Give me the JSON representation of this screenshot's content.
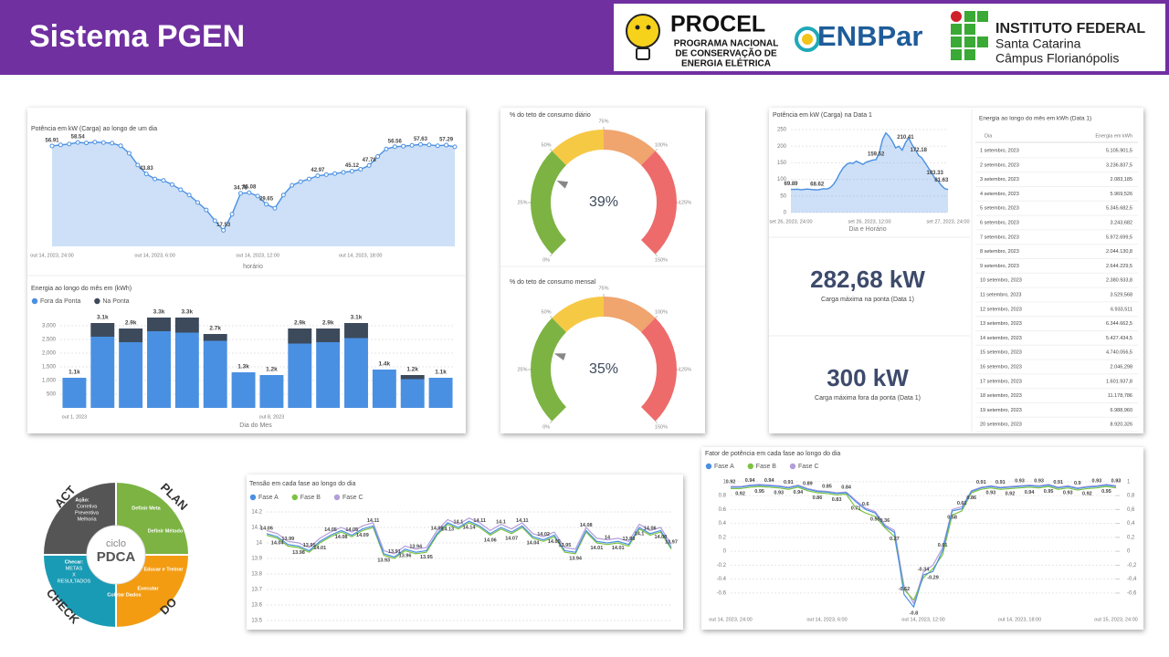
{
  "header": {
    "title": "Sistema PGEN",
    "procel": {
      "name": "PROCEL",
      "lines": [
        "PROGRAMA NACIONAL",
        "DE CONSERVAÇÃO DE",
        "ENERGIA ELÉTRICA"
      ]
    },
    "enbpar": "ENBPar",
    "ifsc": {
      "name": "INSTITUTO FEDERAL",
      "lines": [
        "Santa Catarina",
        "Câmpus Florianópolis"
      ]
    }
  },
  "chart_data": [
    {
      "type": "area",
      "title": "Potência em kW (Carga) ao longo de um dia",
      "x_label": "horário",
      "color": "#4a90e2",
      "markers": true,
      "ylim": [
        10,
        62
      ],
      "categories": [
        "out 14, 2023, 24:00",
        null,
        null,
        null,
        null,
        null,
        null,
        null,
        null,
        null,
        null,
        null,
        "out 14, 2023, 6:00",
        null,
        null,
        null,
        null,
        null,
        null,
        null,
        null,
        null,
        null,
        null,
        "out 14, 2023, 12:00",
        null,
        null,
        null,
        null,
        null,
        null,
        null,
        null,
        null,
        null,
        null,
        "out 14, 2023, 18:00",
        null,
        null,
        null,
        null,
        null,
        null,
        null,
        null,
        null,
        null,
        null
      ],
      "values": [
        56.91,
        57.4,
        57.8,
        58.54,
        58.3,
        58.7,
        58.5,
        58.2,
        57.0,
        53.5,
        48.0,
        43.83,
        41.5,
        40.8,
        38.9,
        36.5,
        34.0,
        30.5,
        27.0,
        22.0,
        17.53,
        25.0,
        34.78,
        35.08,
        33.5,
        29.65,
        27.8,
        34.0,
        38.5,
        40.2,
        41.5,
        42.97,
        43.5,
        44.0,
        44.6,
        45.12,
        46.0,
        47.78,
        52.0,
        55.5,
        56.56,
        56.8,
        57.2,
        57.63,
        57.4,
        57.0,
        57.29,
        56.5
      ],
      "value_labels": [
        "56.91",
        null,
        null,
        "58.54",
        null,
        null,
        null,
        null,
        null,
        null,
        null,
        "43.83",
        null,
        null,
        null,
        null,
        null,
        null,
        null,
        null,
        "17.53",
        null,
        "34.78",
        "35.08",
        null,
        "29.65",
        null,
        null,
        null,
        null,
        null,
        "42.97",
        null,
        null,
        null,
        "45.12",
        null,
        "47.78",
        null,
        null,
        "56.56",
        null,
        null,
        "57.63",
        null,
        null,
        "57.29",
        null
      ]
    },
    {
      "type": "bar",
      "stacked": true,
      "title": "Energia ao longo do mês em (kWh)",
      "x_label": "Dia do Mes",
      "grid": true,
      "ylim": [
        0,
        3500
      ],
      "yticks": [
        500,
        {
          "value": 1000,
          "label": "1,000"
        },
        {
          "value": 1500,
          "label": "1,500"
        },
        {
          "value": 2000,
          "label": "2,000"
        },
        {
          "value": 2500,
          "label": "2,500"
        },
        {
          "value": 3000,
          "label": "3,000"
        }
      ],
      "categories": [
        "out 1, 2023",
        null,
        null,
        null,
        null,
        null,
        null,
        "out 8, 2023",
        null,
        null,
        null,
        null,
        null,
        null
      ],
      "series": [
        {
          "name": "Fora da Ponta",
          "color": "#4a90e2",
          "values": [
            1100,
            2600,
            2400,
            2800,
            2750,
            2450,
            1300,
            1200,
            2350,
            2400,
            2550,
            1400,
            1050,
            1100
          ]
        },
        {
          "name": "Na Ponta",
          "color": "#3d4a5c",
          "values": [
            0,
            500,
            500,
            500,
            550,
            250,
            0,
            0,
            550,
            500,
            550,
            0,
            150,
            0
          ]
        }
      ],
      "total_labels": [
        "1.1k",
        "3.1k",
        "2.9k",
        "3.3k",
        "3.3k",
        "2.7k",
        "1.3k",
        "1.2k",
        "2.9k",
        "2.9k",
        "3.1k",
        "1.4k",
        "1.2k",
        "1.1k"
      ]
    },
    {
      "type": "gauge",
      "title": "% do teto de consumo diário",
      "value": 39,
      "value_label": "39%",
      "ylim": [
        0,
        150
      ],
      "yticks": [
        {
          "value": 0,
          "label": "0%"
        },
        {
          "value": 25,
          "label": "25%"
        },
        {
          "value": 50,
          "label": "50%"
        },
        {
          "value": 75,
          "label": "75%"
        },
        {
          "value": 100,
          "label": "100%"
        },
        {
          "value": 125,
          "label": "125%"
        },
        {
          "value": 150,
          "label": "150%"
        }
      ],
      "bands": [
        {
          "from": 0,
          "to": 50,
          "color": "#7cb342"
        },
        {
          "from": 50,
          "to": 75,
          "color": "#f6c945"
        },
        {
          "from": 75,
          "to": 100,
          "color": "#f0a46e"
        },
        {
          "from": 100,
          "to": 150,
          "color": "#ee6b6b"
        }
      ]
    },
    {
      "type": "gauge",
      "title": "% do teto de consumo mensal",
      "value": 35,
      "value_label": "35%",
      "ylim": [
        0,
        150
      ],
      "yticks": [
        {
          "value": 0,
          "label": "0%"
        },
        {
          "value": 25,
          "label": "25%"
        },
        {
          "value": 50,
          "label": "50%"
        },
        {
          "value": 75,
          "label": "75%"
        },
        {
          "value": 100,
          "label": "100%"
        },
        {
          "value": 125,
          "label": "125%"
        },
        {
          "value": 150,
          "label": "150%"
        }
      ],
      "bands": [
        {
          "from": 0,
          "to": 50,
          "color": "#7cb342"
        },
        {
          "from": 50,
          "to": 75,
          "color": "#f6c945"
        },
        {
          "from": 75,
          "to": 100,
          "color": "#f0a46e"
        },
        {
          "from": 100,
          "to": 150,
          "color": "#ee6b6b"
        }
      ]
    },
    {
      "type": "area",
      "title": "Potência em kW (Carga) na Data 1",
      "x_label": "Dia e Horário",
      "color": "#4a90e2",
      "grid": true,
      "ylim": [
        0,
        250
      ],
      "yticks": [
        0,
        50,
        100,
        150,
        200,
        250
      ],
      "categories": [
        "set 26, 2023, 24:00",
        null,
        null,
        null,
        null,
        null,
        null,
        null,
        null,
        null,
        null,
        null,
        null,
        null,
        null,
        null,
        null,
        null,
        null,
        null,
        null,
        null,
        null,
        null,
        "set 26, 2023, 12:00",
        null,
        null,
        null,
        null,
        null,
        null,
        null,
        null,
        null,
        null,
        null,
        null,
        null,
        null,
        null,
        null,
        null,
        null,
        null,
        null,
        null,
        null,
        null,
        "set 27, 2023, 24:00"
      ],
      "values": [
        69.89,
        70,
        70.5,
        69,
        70,
        71,
        70,
        69,
        68.62,
        70,
        72,
        71,
        75,
        85,
        100,
        120,
        135,
        145,
        150,
        148,
        155,
        150,
        145,
        152,
        155,
        158,
        159.52,
        180,
        220,
        240,
        230,
        215,
        195,
        200,
        188,
        210.41,
        225,
        205,
        190,
        172.18,
        165,
        150,
        135,
        120,
        103.33,
        95,
        81.63,
        72,
        70
      ],
      "value_labels": [
        "69.89",
        null,
        null,
        null,
        null,
        null,
        null,
        null,
        "68.62",
        null,
        null,
        null,
        null,
        null,
        null,
        null,
        null,
        null,
        null,
        null,
        null,
        null,
        null,
        null,
        null,
        null,
        "159.52",
        null,
        null,
        null,
        null,
        null,
        null,
        null,
        null,
        "210.41",
        null,
        null,
        null,
        "172.18",
        null,
        null,
        null,
        null,
        "103.33",
        null,
        "81.63",
        null,
        null
      ]
    },
    {
      "type": "line",
      "title": "Tensão em cada fase ao longo do dia",
      "grid": true,
      "ylim": [
        13.5,
        14.2
      ],
      "yticks": [
        13.5,
        13.6,
        13.7,
        13.8,
        13.9,
        14,
        14.1,
        14.2
      ],
      "series": [
        {
          "name": "Fase A",
          "color": "#4a90e2",
          "data_labels": true,
          "values": [
            14.06,
            14.04,
            13.99,
            13.98,
            13.95,
            14.01,
            14.05,
            14.08,
            14.05,
            14.09,
            14.11,
            13.93,
            13.91,
            13.96,
            13.94,
            13.95,
            14.06,
            14.13,
            14.1,
            14.14,
            14.11,
            14.06,
            14.1,
            14.07,
            14.11,
            14.04,
            14.02,
            14.05,
            13.95,
            13.94,
            14.08,
            14.01,
            14,
            14.01,
            13.99,
            14.1,
            14.06,
            14.08,
            13.97
          ]
        },
        {
          "name": "Fase B",
          "color": "#7cc242",
          "values": [
            14.05,
            14.03,
            13.98,
            13.97,
            13.94,
            14,
            14.04,
            14.07,
            14.04,
            14.08,
            14.1,
            13.92,
            13.9,
            13.95,
            13.93,
            13.94,
            14.05,
            14.12,
            14.09,
            14.13,
            14.1,
            14.05,
            14.09,
            14.06,
            14.1,
            14.03,
            14.01,
            14.04,
            13.94,
            13.93,
            14.07,
            14,
            13.99,
            14,
            13.98,
            14.09,
            14.05,
            14.07,
            13.96
          ]
        },
        {
          "name": "Fase C",
          "color": "#b39ddb",
          "values": [
            14.08,
            14.06,
            14.01,
            14,
            13.97,
            14.03,
            14.07,
            14.1,
            14.07,
            14.11,
            14.13,
            13.95,
            13.93,
            13.98,
            13.96,
            13.97,
            14.08,
            14.15,
            14.12,
            14.16,
            14.13,
            14.08,
            14.12,
            14.09,
            14.13,
            14.06,
            14.04,
            14.07,
            13.97,
            13.96,
            14.1,
            14.03,
            14.02,
            14.03,
            14.01,
            14.12,
            14.08,
            14.1,
            13.99
          ]
        }
      ]
    },
    {
      "type": "line",
      "title": "Fator de potência em cada fase ao longo do dia",
      "grid": true,
      "ylim": [
        -0.85,
        1.05
      ],
      "yticks": [
        -0.6,
        -0.4,
        -0.2,
        0,
        0.2,
        0.4,
        0.6,
        0.8,
        1
      ],
      "y2lim": [
        -0.85,
        1.05
      ],
      "y2ticks": [
        {
          "value": -0.6,
          "label": "-0,6"
        },
        {
          "value": -0.4,
          "label": "-0,4"
        },
        {
          "value": -0.2,
          "label": "-0,2"
        },
        0,
        {
          "value": 0.2,
          "label": "0,2"
        },
        {
          "value": 0.4,
          "label": "0,4"
        },
        {
          "value": 0.6,
          "label": "0,6"
        },
        {
          "value": 0.8,
          "label": "0,8"
        },
        1
      ],
      "categories": [
        "out 14, 2023, 24:00",
        null,
        null,
        null,
        null,
        null,
        null,
        null,
        null,
        null,
        "out 14, 2023, 6:00",
        null,
        null,
        null,
        null,
        null,
        null,
        null,
        null,
        null,
        "out 14, 2023, 12:00",
        null,
        null,
        null,
        null,
        null,
        null,
        null,
        null,
        null,
        "out 14, 2023, 18:00",
        null,
        null,
        null,
        null,
        null,
        null,
        null,
        null,
        null,
        "out 15, 2023, 24:00"
      ],
      "series": [
        {
          "name": "Fase A",
          "color": "#4a90e2",
          "data_labels": true,
          "values": [
            0.92,
            0.92,
            0.94,
            0.95,
            0.94,
            0.93,
            0.91,
            0.94,
            0.89,
            0.86,
            0.85,
            0.83,
            0.84,
            0.71,
            0.6,
            0.55,
            0.36,
            0.27,
            -0.62,
            -0.8,
            -0.34,
            -0.29,
            0.01,
            0.58,
            0.61,
            0.86,
            0.91,
            0.93,
            0.91,
            0.92,
            0.93,
            0.94,
            0.93,
            0.95,
            0.91,
            0.93,
            0.9,
            0.92,
            0.93,
            0.95,
            0.93
          ]
        },
        {
          "name": "Fase B",
          "color": "#7cc242",
          "values": [
            0.9,
            0.9,
            0.92,
            0.93,
            0.92,
            0.91,
            0.89,
            0.92,
            0.87,
            0.84,
            0.83,
            0.81,
            0.82,
            0.62,
            0.55,
            0.5,
            0.34,
            0.21,
            -0.55,
            -0.7,
            -0.38,
            -0.25,
            -0.05,
            0.52,
            0.58,
            0.84,
            0.89,
            0.91,
            0.89,
            0.9,
            0.91,
            0.92,
            0.91,
            0.93,
            0.89,
            0.91,
            0.88,
            0.9,
            0.91,
            0.93,
            0.91
          ]
        },
        {
          "name": "Fase C",
          "color": "#b39ddb",
          "values": [
            0.93,
            0.93,
            0.95,
            0.96,
            0.95,
            0.94,
            0.92,
            0.95,
            0.9,
            0.87,
            0.86,
            0.84,
            0.85,
            0.73,
            0.62,
            0.57,
            0.38,
            0.3,
            -0.5,
            -0.75,
            -0.3,
            -0.2,
            0.05,
            0.6,
            0.64,
            0.87,
            0.92,
            0.94,
            0.92,
            0.93,
            0.94,
            0.95,
            0.94,
            0.96,
            0.92,
            0.94,
            0.91,
            0.93,
            0.94,
            0.96,
            0.94
          ]
        }
      ]
    }
  ],
  "kpis": [
    {
      "value": "282,68 kW",
      "label": "Carga máxima na ponta (Data 1)"
    },
    {
      "value": "300 kW",
      "label": "Carga máxima fora da ponta (Data 1)"
    }
  ],
  "table": {
    "title": "Energia ao longo do mês em kWh (Data 1)",
    "columns": [
      "Dia",
      "Energia em kWh"
    ],
    "rows": [
      [
        "1 setembro, 2023",
        "5.105.901,5"
      ],
      [
        "2 setembro, 2023",
        "3.236.837,5"
      ],
      [
        "3 setembro, 2023",
        "2.083,185"
      ],
      [
        "4 setembro, 2023",
        "5.969,526"
      ],
      [
        "5 setembro, 2023",
        "5.345.682,5"
      ],
      [
        "6 setembro, 2023",
        "3.243,682"
      ],
      [
        "7 setembro, 2023",
        "5.972.699,5"
      ],
      [
        "8 setembro, 2023",
        "2.044.130,8"
      ],
      [
        "9 setembro, 2023",
        "2.644.229,5"
      ],
      [
        "10 setembro, 2023",
        "2.380.933,8"
      ],
      [
        "11 setembro, 2023",
        "3.529,568"
      ],
      [
        "12 setembro, 2023",
        "6.933,511"
      ],
      [
        "13 setembro, 2023",
        "6.344.662,5"
      ],
      [
        "14 setembro, 2023",
        "5.427.434,5"
      ],
      [
        "15 setembro, 2023",
        "4.740.056,5"
      ],
      [
        "16 setembro, 2023",
        "2.046,298"
      ],
      [
        "17 setembro, 2023",
        "1.601.937,8"
      ],
      [
        "18 setembro, 2023",
        "11.178,786"
      ],
      [
        "19 setembro, 2023",
        "6.988,960"
      ],
      [
        "20 setembro, 2023",
        "8.920,326"
      ]
    ]
  },
  "pdca": {
    "act": "ACT",
    "plan": "PLAN",
    "check": "CHECK",
    "do": "DO",
    "center": [
      "ciclo",
      "PDCA"
    ],
    "act_note": [
      "Ação:",
      "Corretiva",
      "Preventiva",
      "Melhoria"
    ],
    "plan_steps": [
      "Definir Meta",
      "Definir Método"
    ],
    "do_steps": [
      "Educar e Treinar",
      "Executar",
      "Coletar Dados"
    ],
    "check_note": [
      "Checar:",
      "METAS",
      "X",
      "RESULTADOS"
    ]
  }
}
